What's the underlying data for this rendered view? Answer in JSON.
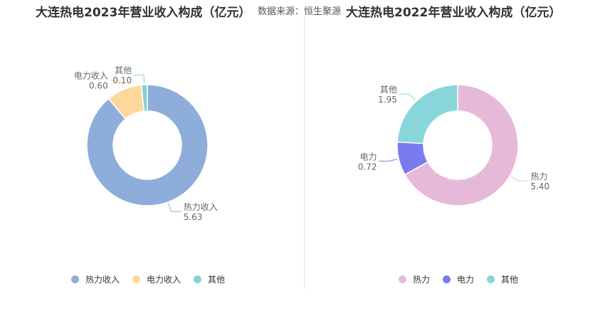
{
  "header": {
    "source_label": "数据来源：恒生聚源"
  },
  "chart_data": [
    {
      "type": "pie",
      "donut": true,
      "title": "大连热电2023年营业收入构成（亿元）",
      "categories": [
        "热力收入",
        "电力收入",
        "其他"
      ],
      "values": [
        5.63,
        0.6,
        0.1
      ],
      "value_labels": [
        "5.63",
        "0.60",
        "0.10"
      ],
      "colors": [
        "#8eadda",
        "#fed89b",
        "#84d3d9"
      ],
      "legend": "bottom"
    },
    {
      "type": "pie",
      "donut": true,
      "title": "大连热电2022年营业收入构成（亿元）",
      "categories": [
        "热力",
        "电力",
        "其他"
      ],
      "values": [
        5.4,
        0.72,
        1.95
      ],
      "value_labels": [
        "5.40",
        "0.72",
        "1.95"
      ],
      "colors": [
        "#e7b9d9",
        "#7b7bef",
        "#88d5da"
      ],
      "legend": "bottom"
    }
  ]
}
